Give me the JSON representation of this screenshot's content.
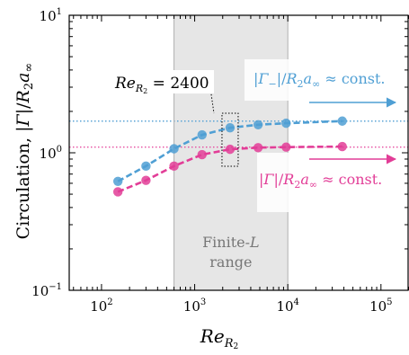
{
  "chart_data": {
    "type": "line",
    "x_scale": "log",
    "y_scale": "log",
    "xlim": [
      45,
      200000
    ],
    "ylim": [
      0.1,
      10
    ],
    "xlabel": {
      "main": "Re",
      "sub": "R",
      "subsub": "2"
    },
    "ylabel": {
      "prefix": "Circulation, |",
      "gamma": "Γ",
      "mid": "|/",
      "r": "R",
      "r_sub": "2",
      "a": "a",
      "a_sub": "∞"
    },
    "x_ticks": [
      {
        "value": 100,
        "base": "10",
        "exp": "2"
      },
      {
        "value": 1000,
        "base": "10",
        "exp": "3"
      },
      {
        "value": 10000,
        "base": "10",
        "exp": "4"
      },
      {
        "value": 100000,
        "base": "10",
        "exp": "5"
      }
    ],
    "y_ticks": [
      {
        "value": 0.1,
        "base": "10",
        "exp": "−1"
      },
      {
        "value": 1,
        "base": "10",
        "exp": "0"
      },
      {
        "value": 10,
        "base": "10",
        "exp": "1"
      }
    ],
    "shaded_region": {
      "x": [
        600,
        10000
      ],
      "color": "#e6e6e6",
      "label_line1": "Finite-",
      "label_line1_italic": "L",
      "label_line2": "range"
    },
    "reference_lines": [
      {
        "y": 1.7,
        "color": "#5ba4d6"
      },
      {
        "y": 1.1,
        "color": "#e64da0"
      }
    ],
    "series": [
      {
        "color": "#4f9fd4",
        "x": [
          150,
          300,
          600,
          1200,
          2400,
          4800,
          9600,
          38400
        ],
        "y": [
          0.62,
          0.8,
          1.07,
          1.35,
          1.52,
          1.6,
          1.64,
          1.7
        ],
        "annotation": {
          "bar": "|",
          "gamma": "Γ",
          "gamma_sub": "−",
          "mid": "|/",
          "r": "R",
          "r_sub": "2",
          "a": "a",
          "a_sub": "∞",
          "tail": " ≈ const."
        }
      },
      {
        "color": "#e23d97",
        "x": [
          150,
          300,
          600,
          1200,
          2400,
          4800,
          9600,
          38400
        ],
        "y": [
          0.52,
          0.63,
          0.8,
          0.97,
          1.06,
          1.09,
          1.1,
          1.11
        ],
        "annotation": {
          "bar": "|",
          "gamma": "Γ",
          "mid": "|/",
          "r": "R",
          "r_sub": "2",
          "a": "a",
          "a_sub": "∞",
          "tail": " ≈ const."
        }
      }
    ],
    "callout": {
      "main": "Re",
      "sub": "R",
      "subsub": "2",
      "value": " = 2400",
      "x": 2400
    }
  }
}
